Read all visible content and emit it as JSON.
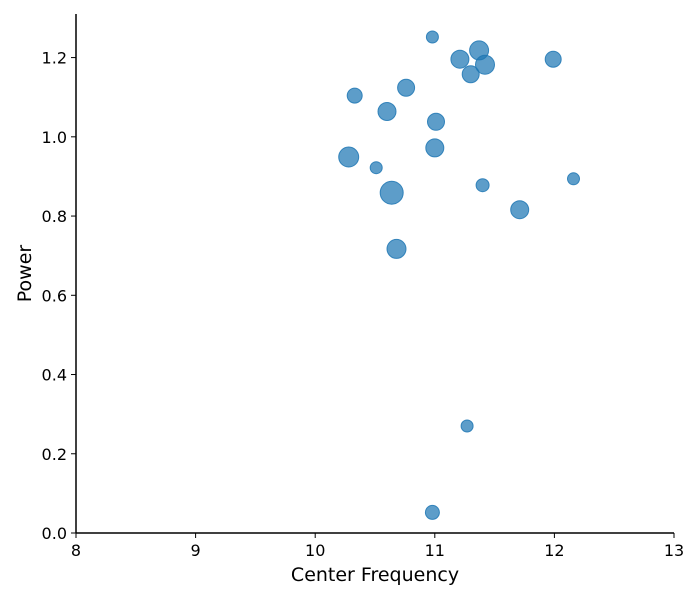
{
  "chart_data": {
    "type": "scatter",
    "title": "",
    "xlabel": "Center Frequency",
    "ylabel": "Power",
    "xlim": [
      8,
      13
    ],
    "ylim": [
      0,
      1.31
    ],
    "xticks": [
      8,
      9,
      10,
      11,
      12,
      13
    ],
    "yticks": [
      0.0,
      0.2,
      0.4,
      0.6,
      0.8,
      1.0,
      1.2
    ],
    "grid": false,
    "legend": "none",
    "color": "#1f77b4",
    "size_units": "marker diameter (relative)",
    "points": [
      {
        "x": 10.98,
        "y": 1.252,
        "size": 12
      },
      {
        "x": 11.37,
        "y": 1.218,
        "size": 19
      },
      {
        "x": 11.21,
        "y": 1.196,
        "size": 18
      },
      {
        "x": 11.99,
        "y": 1.196,
        "size": 16
      },
      {
        "x": 11.42,
        "y": 1.182,
        "size": 19
      },
      {
        "x": 11.3,
        "y": 1.158,
        "size": 17
      },
      {
        "x": 10.76,
        "y": 1.124,
        "size": 17
      },
      {
        "x": 10.33,
        "y": 1.104,
        "size": 15
      },
      {
        "x": 10.6,
        "y": 1.064,
        "size": 18
      },
      {
        "x": 11.01,
        "y": 1.038,
        "size": 17
      },
      {
        "x": 11.0,
        "y": 0.972,
        "size": 18
      },
      {
        "x": 10.28,
        "y": 0.949,
        "size": 20
      },
      {
        "x": 10.51,
        "y": 0.922,
        "size": 12
      },
      {
        "x": 12.16,
        "y": 0.894,
        "size": 12
      },
      {
        "x": 11.4,
        "y": 0.878,
        "size": 13
      },
      {
        "x": 10.64,
        "y": 0.859,
        "size": 23
      },
      {
        "x": 11.71,
        "y": 0.816,
        "size": 18
      },
      {
        "x": 10.68,
        "y": 0.717,
        "size": 19
      },
      {
        "x": 11.27,
        "y": 0.27,
        "size": 12
      },
      {
        "x": 10.98,
        "y": 0.052,
        "size": 14
      }
    ]
  }
}
